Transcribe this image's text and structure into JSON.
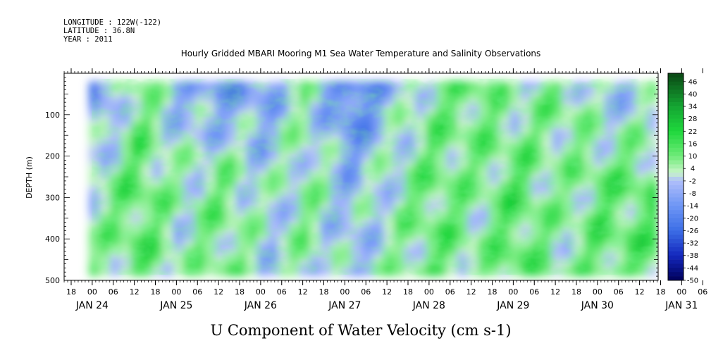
{
  "header": {
    "longitude": "LONGITUDE : 122W(-122)",
    "latitude": "LATITUDE : 36.8N",
    "year": "YEAR : 2011",
    "title": "Hourly Gridded MBARI Mooring M1 Sea Water Temperature and Salinity Observations"
  },
  "chart_data": {
    "type": "heatmap",
    "title": "Hourly Gridded MBARI Mooring M1 Sea Water Temperature and Salinity Observations",
    "variable_title": "U Component of Water Velocity (cm s-1)",
    "ylabel": "DEPTH (m)",
    "y_ticks": [
      "100",
      "200",
      "300",
      "400",
      "500"
    ],
    "y_range": [
      0,
      500
    ],
    "y_inverted": true,
    "x_hour_ticks": [
      "18",
      "00",
      "06",
      "12",
      "18",
      "00",
      "06",
      "12",
      "18",
      "00",
      "06",
      "12",
      "18",
      "00",
      "06",
      "12",
      "18",
      "00",
      "06",
      "12",
      "18",
      "00",
      "06",
      "12",
      "18",
      "00",
      "06",
      "12",
      "18",
      "00",
      "06",
      "12"
    ],
    "x_day_labels": [
      "JAN 24",
      "JAN 25",
      "JAN 26",
      "JAN 27",
      "JAN 28",
      "JAN 29",
      "JAN 30",
      "JAN 31"
    ],
    "x_range": [
      "JAN 24 12:00",
      "JAN 31 18:00"
    ],
    "data_extent": {
      "x": [
        "JAN 24 23:00",
        "JAN 31 17:00"
      ],
      "depth_m": [
        20,
        485
      ]
    },
    "colorbar": {
      "labels": [
        "46",
        "40",
        "34",
        "28",
        "22",
        "16",
        "10",
        "4",
        "-2",
        "-8",
        "-14",
        "-20",
        "-26",
        "-32",
        "-38",
        "-44",
        "-50"
      ],
      "range": [
        -50,
        50
      ]
    },
    "pattern": {
      "days": [
        "JAN 25",
        "JAN 25",
        "JAN 26",
        "JAN 26",
        "JAN 27",
        "JAN 27",
        "JAN 28",
        "JAN 28",
        "JAN 29",
        "JAN 29",
        "JAN 30",
        "JAN 30",
        "JAN 31"
      ],
      "deep_u": [
        4,
        14,
        2,
        10,
        -2,
        6,
        -6,
        3,
        12,
        6,
        14,
        4,
        12
      ],
      "shallow_u": [
        -16,
        10,
        -8,
        -14,
        -10,
        4,
        -24,
        -6,
        8,
        12,
        2,
        10,
        -4
      ]
    }
  }
}
